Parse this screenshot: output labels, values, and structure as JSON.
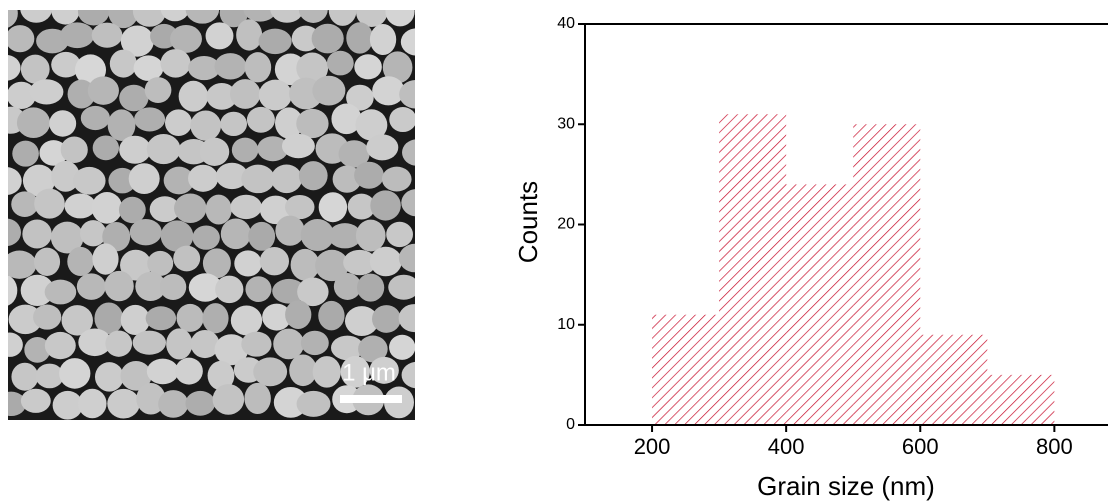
{
  "image": {
    "scale_bar_label": "1 μm"
  },
  "chart_data": {
    "type": "histogram",
    "x_label": "Grain size (nm)",
    "y_label": "Counts",
    "bins": [
      200,
      300,
      400,
      500,
      600,
      700,
      800
    ],
    "values": [
      11,
      31,
      24,
      30,
      9,
      5
    ],
    "color": "#c8102e",
    "xlim": [
      100,
      880
    ],
    "xticks": [
      200,
      400,
      600,
      800
    ],
    "ylim": [
      0,
      40
    ],
    "yticks": [
      0,
      10,
      20,
      30,
      40
    ]
  }
}
